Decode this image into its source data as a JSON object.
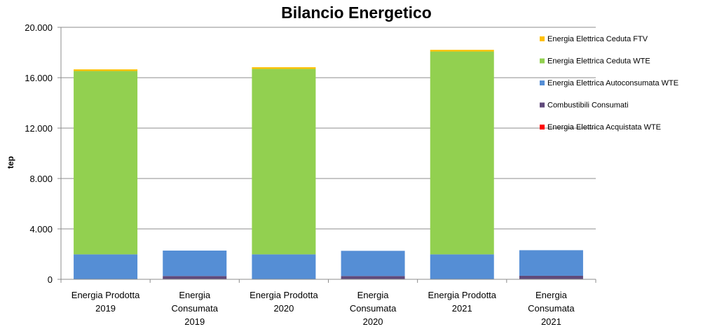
{
  "chart_data": {
    "type": "bar",
    "stacked": true,
    "title": "Bilancio Energetico",
    "ylabel": "tep",
    "xlabel": "",
    "ylim": [
      0,
      20000
    ],
    "yticks": [
      "0",
      "4.000",
      "8.000",
      "12.000",
      "16.000",
      "20.000"
    ],
    "ytick_values": [
      0,
      4000,
      8000,
      12000,
      16000,
      20000
    ],
    "grid": true,
    "legend_position": "right",
    "categories": [
      [
        "Energia Prodotta",
        "2019"
      ],
      [
        "Energia",
        "Consumata",
        "2019"
      ],
      [
        "Energia Prodotta",
        "2020"
      ],
      [
        "Energia",
        "Consumata",
        "2020"
      ],
      [
        "Energia Prodotta",
        "2021"
      ],
      [
        "Energia",
        "Consumata",
        "2021"
      ]
    ],
    "series": [
      {
        "name": "Energia Elettrica Acquistata WTE",
        "color": "#ff0000",
        "values": [
          0,
          30,
          0,
          30,
          0,
          30
        ]
      },
      {
        "name": "Combustibili Consumati",
        "color": "#604a7b",
        "values": [
          0,
          230,
          0,
          230,
          0,
          250
        ]
      },
      {
        "name": "Energia Elettrica Autoconsumata WTE",
        "color": "#558ed5",
        "values": [
          1980,
          2020,
          1980,
          2000,
          1980,
          2030
        ]
      },
      {
        "name": "Energia Elettrica Ceduta WTE",
        "color": "#92d050",
        "values": [
          14550,
          0,
          14720,
          0,
          16100,
          0
        ]
      },
      {
        "name": "Energia Elettrica Ceduta FTV",
        "color": "#ffc000",
        "values": [
          130,
          0,
          130,
          0,
          130,
          0
        ]
      }
    ],
    "legend_order": [
      4,
      3,
      2,
      1,
      0
    ]
  }
}
